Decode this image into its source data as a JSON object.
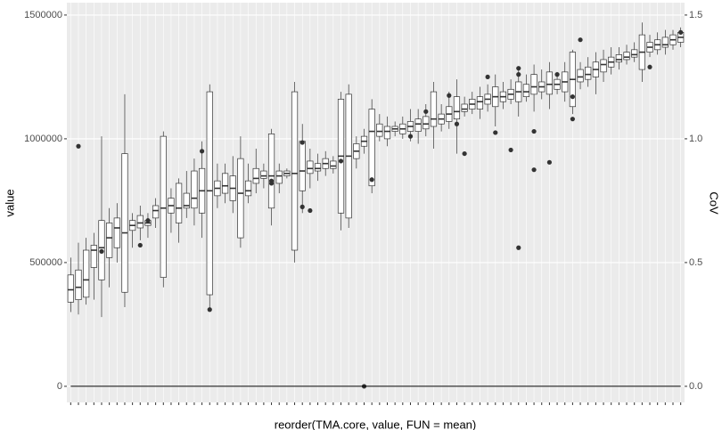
{
  "chart_data": {
    "type": "box",
    "x_label": "reorder(TMA.core, value, FUN = mean)",
    "y_label": "value",
    "y2_label": "CoV",
    "categories": [
      null,
      null,
      null,
      null,
      null,
      null,
      null,
      null,
      null,
      null,
      null,
      null,
      null,
      null,
      null,
      null,
      null,
      null,
      null,
      null,
      null,
      null,
      null,
      null,
      null,
      null,
      null,
      null,
      null,
      null,
      null,
      null,
      null,
      null,
      null,
      null,
      null,
      null,
      null,
      null,
      null,
      null,
      null,
      null,
      null,
      null,
      null,
      null,
      null,
      null,
      null,
      null,
      null,
      null,
      null,
      null,
      null,
      null,
      null,
      null,
      null,
      null,
      null,
      null,
      null,
      null,
      null,
      null,
      null,
      null,
      null,
      null,
      null,
      null,
      null,
      null,
      null,
      null,
      null,
      null
    ],
    "boxes": [
      [
        300000,
        340000,
        390000,
        450000,
        520000
      ],
      [
        290000,
        350000,
        400000,
        470000,
        580000
      ],
      [
        330000,
        360000,
        430000,
        550000,
        600000
      ],
      [
        350000,
        480000,
        550000,
        570000,
        620000
      ],
      [
        280000,
        430000,
        560000,
        670000,
        1010000
      ],
      [
        400000,
        520000,
        600000,
        660000,
        720000
      ],
      [
        500000,
        560000,
        640000,
        680000,
        740000
      ],
      [
        320000,
        380000,
        620000,
        940000,
        1180000
      ],
      [
        560000,
        630000,
        650000,
        670000,
        700000
      ],
      [
        590000,
        640000,
        660000,
        690000,
        730000
      ],
      [
        600000,
        650000,
        660000,
        670000,
        700000
      ],
      [
        640000,
        680000,
        710000,
        730000,
        760000
      ],
      [
        400000,
        440000,
        720000,
        1010000,
        1030000
      ],
      [
        620000,
        700000,
        730000,
        760000,
        800000
      ],
      [
        580000,
        660000,
        720000,
        820000,
        840000
      ],
      [
        680000,
        720000,
        730000,
        780000,
        870000
      ],
      [
        650000,
        720000,
        760000,
        870000,
        920000
      ],
      [
        600000,
        700000,
        790000,
        880000,
        990000
      ],
      [
        310000,
        370000,
        790000,
        1190000,
        1220000
      ],
      [
        720000,
        770000,
        800000,
        830000,
        900000
      ],
      [
        740000,
        780000,
        810000,
        860000,
        900000
      ],
      [
        700000,
        750000,
        800000,
        850000,
        930000
      ],
      [
        560000,
        600000,
        780000,
        920000,
        1010000
      ],
      [
        740000,
        770000,
        790000,
        830000,
        900000
      ],
      [
        780000,
        820000,
        840000,
        880000,
        960000
      ],
      [
        800000,
        840000,
        850000,
        870000,
        900000
      ],
      [
        650000,
        720000,
        850000,
        1020000,
        1040000
      ],
      [
        780000,
        820000,
        850000,
        870000,
        900000
      ],
      [
        840000,
        850000,
        860000,
        870000,
        880000
      ],
      [
        500000,
        550000,
        860000,
        1190000,
        1230000
      ],
      [
        700000,
        790000,
        870000,
        990000,
        1060000
      ],
      [
        800000,
        860000,
        880000,
        910000,
        960000
      ],
      [
        830000,
        870000,
        880000,
        900000,
        940000
      ],
      [
        850000,
        880000,
        900000,
        920000,
        950000
      ],
      [
        860000,
        880000,
        890000,
        910000,
        930000
      ],
      [
        630000,
        700000,
        930000,
        1160000,
        1190000
      ],
      [
        640000,
        680000,
        930000,
        1180000,
        1220000
      ],
      [
        880000,
        920000,
        950000,
        980000,
        1010000
      ],
      [
        940000,
        970000,
        990000,
        1010000,
        1040000
      ],
      [
        780000,
        810000,
        1030000,
        1120000,
        1160000
      ],
      [
        990000,
        1010000,
        1030000,
        1060000,
        1100000
      ],
      [
        970000,
        1000000,
        1030000,
        1050000,
        1090000
      ],
      [
        1010000,
        1030000,
        1040000,
        1050000,
        1070000
      ],
      [
        1000000,
        1020000,
        1040000,
        1060000,
        1090000
      ],
      [
        990000,
        1030000,
        1050000,
        1070000,
        1120000
      ],
      [
        980000,
        1030000,
        1060000,
        1080000,
        1120000
      ],
      [
        1010000,
        1040000,
        1060000,
        1090000,
        1140000
      ],
      [
        960000,
        1050000,
        1080000,
        1190000,
        1230000
      ],
      [
        1030000,
        1060000,
        1080000,
        1100000,
        1140000
      ],
      [
        1040000,
        1070000,
        1100000,
        1130000,
        1190000
      ],
      [
        940000,
        1080000,
        1110000,
        1170000,
        1240000
      ],
      [
        1090000,
        1110000,
        1120000,
        1140000,
        1170000
      ],
      [
        1100000,
        1120000,
        1140000,
        1160000,
        1190000
      ],
      [
        1080000,
        1120000,
        1150000,
        1170000,
        1210000
      ],
      [
        1110000,
        1140000,
        1160000,
        1180000,
        1220000
      ],
      [
        1050000,
        1130000,
        1170000,
        1210000,
        1260000
      ],
      [
        1120000,
        1150000,
        1170000,
        1190000,
        1230000
      ],
      [
        1140000,
        1160000,
        1180000,
        1200000,
        1240000
      ],
      [
        1090000,
        1150000,
        1190000,
        1230000,
        1290000
      ],
      [
        1150000,
        1170000,
        1190000,
        1220000,
        1260000
      ],
      [
        1110000,
        1180000,
        1210000,
        1260000,
        1300000
      ],
      [
        1160000,
        1190000,
        1210000,
        1230000,
        1280000
      ],
      [
        1120000,
        1180000,
        1220000,
        1270000,
        1310000
      ],
      [
        1180000,
        1200000,
        1220000,
        1240000,
        1270000
      ],
      [
        1150000,
        1190000,
        1230000,
        1270000,
        1310000
      ],
      [
        1100000,
        1130000,
        1240000,
        1350000,
        1360000
      ],
      [
        1200000,
        1230000,
        1250000,
        1280000,
        1310000
      ],
      [
        1210000,
        1240000,
        1260000,
        1290000,
        1330000
      ],
      [
        1180000,
        1250000,
        1280000,
        1310000,
        1350000
      ],
      [
        1230000,
        1270000,
        1300000,
        1320000,
        1360000
      ],
      [
        1260000,
        1290000,
        1310000,
        1330000,
        1370000
      ],
      [
        1280000,
        1310000,
        1320000,
        1340000,
        1370000
      ],
      [
        1300000,
        1320000,
        1330000,
        1350000,
        1380000
      ],
      [
        1310000,
        1330000,
        1340000,
        1360000,
        1390000
      ],
      [
        1230000,
        1280000,
        1350000,
        1420000,
        1470000
      ],
      [
        1330000,
        1350000,
        1370000,
        1390000,
        1420000
      ],
      [
        1340000,
        1360000,
        1380000,
        1400000,
        1430000
      ],
      [
        1340000,
        1370000,
        1380000,
        1410000,
        1440000
      ],
      [
        1360000,
        1380000,
        1400000,
        1420000,
        1440000
      ],
      [
        1370000,
        1390000,
        1410000,
        1430000,
        1450000
      ]
    ],
    "outliers": [
      [
        1,
        970000
      ],
      [
        4,
        545000
      ],
      [
        9,
        570000
      ],
      [
        10,
        670000
      ],
      [
        17,
        950000
      ],
      [
        18,
        310000
      ],
      [
        26,
        830000
      ],
      [
        26,
        820000
      ],
      [
        30,
        985000
      ],
      [
        30,
        725000
      ],
      [
        31,
        710000
      ],
      [
        35,
        910000
      ],
      [
        38,
        0
      ],
      [
        39,
        835000
      ],
      [
        44,
        1010000
      ],
      [
        46,
        1110000
      ],
      [
        49,
        1175000
      ],
      [
        50,
        1060000
      ],
      [
        51,
        940000
      ],
      [
        54,
        1250000
      ],
      [
        55,
        1025000
      ],
      [
        57,
        955000
      ],
      [
        58,
        1260000
      ],
      [
        58,
        1285000
      ],
      [
        58,
        560000
      ],
      [
        60,
        1030000
      ],
      [
        60,
        875000
      ],
      [
        62,
        905000
      ],
      [
        63,
        1260000
      ],
      [
        65,
        1080000
      ],
      [
        65,
        1170000
      ],
      [
        66,
        1400000
      ],
      [
        75,
        1290000
      ],
      [
        79,
        1430000
      ]
    ],
    "cov_values": [
      0,
      0,
      0,
      0,
      0,
      0,
      0,
      0,
      0,
      0,
      0,
      0,
      0,
      0,
      0,
      0,
      0,
      0,
      0,
      0,
      0,
      0,
      0,
      0,
      0,
      0,
      0,
      0,
      0,
      0,
      0,
      0,
      0,
      0,
      0,
      0,
      0,
      0,
      0,
      0,
      0,
      0,
      0,
      0,
      0,
      0,
      0,
      0,
      0,
      0,
      0,
      0,
      0,
      0,
      0,
      0,
      0,
      0,
      0,
      0,
      0,
      0,
      0,
      0,
      0,
      0,
      0,
      0,
      0,
      0,
      0,
      0,
      0,
      0,
      0,
      0,
      0,
      0,
      0,
      0
    ],
    "cov_color": "#000000",
    "box_color": "#333333",
    "ylim": [
      -65000,
      1550000
    ],
    "yticks": [
      0,
      500000,
      1000000,
      1500000
    ],
    "y2lim": [
      -0.065,
      1.55
    ],
    "y2ticks": [
      {
        "value": 0,
        "label": "0.0"
      },
      {
        "value": 0.5,
        "label": "0.5"
      },
      {
        "value": 1,
        "label": "1.0"
      },
      {
        "value": 1.5,
        "label": "1.5"
      }
    ],
    "grid": true
  }
}
